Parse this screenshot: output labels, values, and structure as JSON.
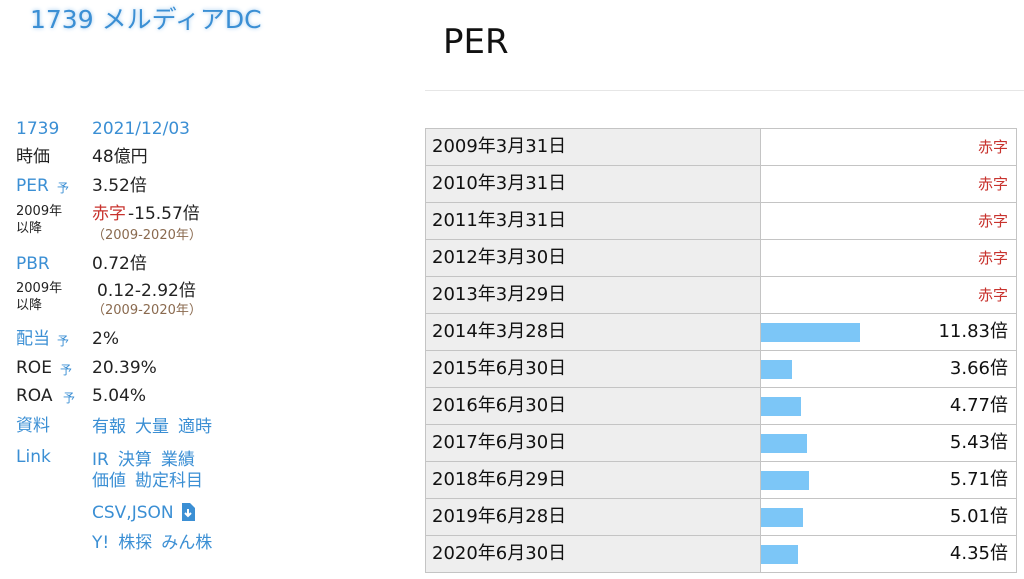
{
  "header": {
    "title": "1739 メルディアDC"
  },
  "info": {
    "code": "1739",
    "date": "2021/12/03",
    "market_cap": {
      "label": "時価",
      "value": "48億円"
    },
    "per": {
      "label": "PER",
      "badge": "予",
      "value": "3.52倍"
    },
    "per_range": {
      "label_1": "2009年",
      "label_2": "以降",
      "deficit": "赤字",
      "value": "-15.57倍",
      "period": "（2009-2020年）"
    },
    "pbr": {
      "label": "PBR",
      "value": "0.72倍"
    },
    "pbr_range": {
      "label_1": "2009年",
      "label_2": "以降",
      "value": "0.12-2.92倍",
      "period": "（2009-2020年）"
    },
    "dividend": {
      "label": "配当",
      "badge": "予",
      "value": "2%"
    },
    "roe": {
      "label": "ROE",
      "badge": "予",
      "value": "20.39%"
    },
    "roa": {
      "label": "ROA",
      "badge": "予",
      "value": "5.04%"
    },
    "documents": {
      "label": "資料",
      "links": [
        "有報",
        "大量",
        "適時"
      ]
    },
    "links": {
      "label": "Link",
      "lines": [
        [
          "IR",
          "決算",
          "業績"
        ],
        [
          "価値",
          "勘定科目"
        ],
        [
          "CSV,JSON"
        ],
        [
          "Y!",
          "株探",
          "みん株"
        ]
      ]
    }
  },
  "panel": {
    "title": "PER",
    "rows": [
      {
        "date": "2009年3月31日",
        "label": "赤字"
      },
      {
        "date": "2010年3月31日",
        "label": "赤字"
      },
      {
        "date": "2011年3月31日",
        "label": "赤字"
      },
      {
        "date": "2012年3月30日",
        "label": "赤字"
      },
      {
        "date": "2013年3月29日",
        "label": "赤字"
      },
      {
        "date": "2014年3月28日",
        "value": 11.83,
        "label": "11.83倍"
      },
      {
        "date": "2015年6月30日",
        "value": 3.66,
        "label": "3.66倍"
      },
      {
        "date": "2016年6月30日",
        "value": 4.77,
        "label": "4.77倍"
      },
      {
        "date": "2017年6月30日",
        "value": 5.43,
        "label": "5.43倍"
      },
      {
        "date": "2018年6月29日",
        "value": 5.71,
        "label": "5.71倍"
      },
      {
        "date": "2019年6月28日",
        "value": 5.01,
        "label": "5.01倍"
      },
      {
        "date": "2020年6月30日",
        "value": 4.35,
        "label": "4.35倍"
      }
    ]
  }
}
